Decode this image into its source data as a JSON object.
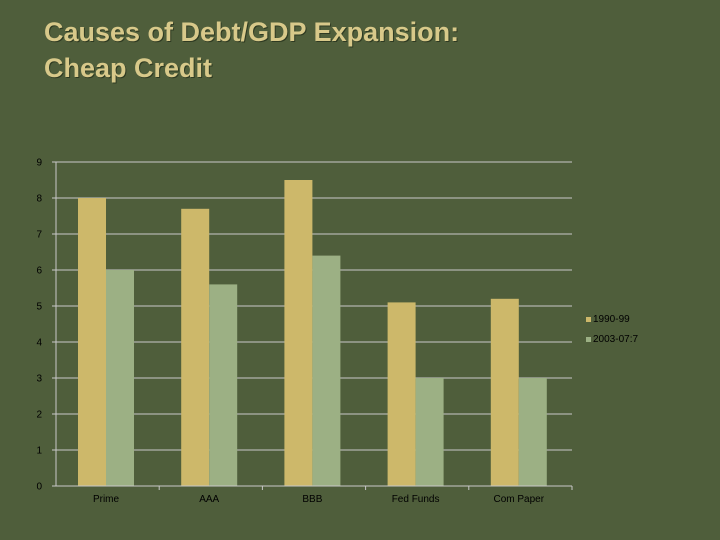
{
  "slide": {
    "title_line1": "Causes of Debt/GDP Expansion:",
    "title_line2": "Cheap Credit"
  },
  "colors": {
    "background": "#4f5e3b",
    "title": "#d8c98a",
    "series_1990": "#cdb86a",
    "series_2003": "#9cb084",
    "axis": "#c8c8c8"
  },
  "chart_data": {
    "type": "bar",
    "title": "",
    "xlabel": "",
    "ylabel": "",
    "categories": [
      "Prime",
      "AAA",
      "BBB",
      "Fed Funds",
      "Com Paper"
    ],
    "series": [
      {
        "name": "1990-99",
        "values": [
          8.0,
          7.7,
          8.5,
          5.1,
          5.2
        ]
      },
      {
        "name": "2003-07:7",
        "values": [
          6.0,
          5.6,
          6.4,
          3.0,
          3.0
        ]
      }
    ],
    "ylim": [
      0,
      9
    ],
    "yticks": [
      "0",
      "1",
      "2",
      "3",
      "4",
      "5",
      "6",
      "7",
      "8",
      "9"
    ],
    "grid": true,
    "legend_position": "right"
  }
}
